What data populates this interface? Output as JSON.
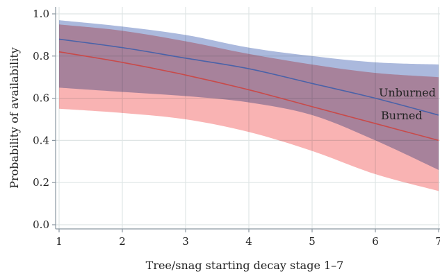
{
  "chart_data": {
    "type": "line",
    "xlabel": "Tree/snag starting decay stage 1–7",
    "ylabel": "Probability of availability",
    "xlim": [
      1,
      7
    ],
    "ylim": [
      0,
      1.0
    ],
    "x_ticks": [
      "1",
      "2",
      "3",
      "4",
      "5",
      "6",
      "7"
    ],
    "y_ticks": [
      "0.0",
      "0.2",
      "0.4",
      "0.6",
      "0.8",
      "1.0"
    ],
    "grid": true,
    "x": [
      1,
      2,
      3,
      4,
      5,
      6,
      7
    ],
    "series": [
      {
        "name": "Unburned",
        "color": "#4a62a8",
        "band_color": "#8fa2d2",
        "values": [
          0.88,
          0.84,
          0.79,
          0.74,
          0.67,
          0.6,
          0.52
        ],
        "lower": [
          0.65,
          0.63,
          0.61,
          0.58,
          0.52,
          0.4,
          0.26
        ],
        "upper": [
          0.97,
          0.94,
          0.9,
          0.84,
          0.8,
          0.77,
          0.76
        ]
      },
      {
        "name": "Burned",
        "color": "#c84a4a",
        "band_color": "#f79a9a",
        "values": [
          0.82,
          0.77,
          0.71,
          0.64,
          0.56,
          0.48,
          0.4
        ],
        "lower": [
          0.55,
          0.53,
          0.5,
          0.44,
          0.35,
          0.24,
          0.16
        ],
        "upper": [
          0.95,
          0.92,
          0.87,
          0.81,
          0.76,
          0.72,
          0.7
        ]
      }
    ]
  }
}
